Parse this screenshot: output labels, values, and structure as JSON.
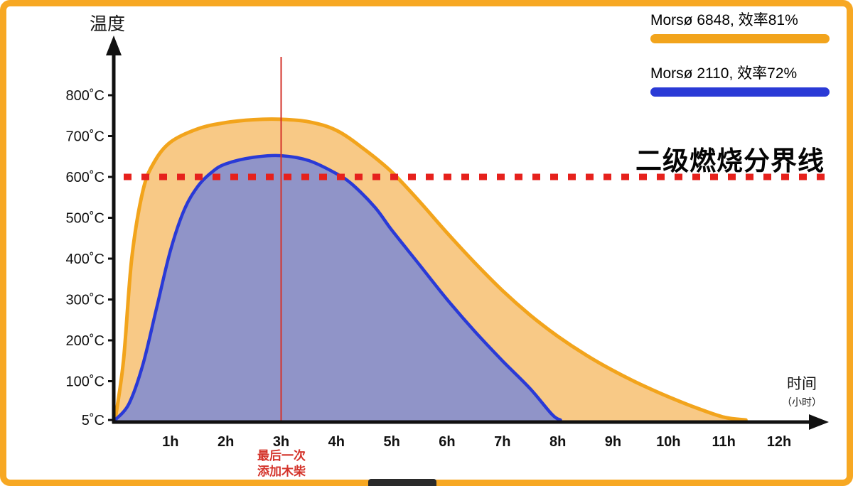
{
  "frame": {
    "border_color": "#F7A823",
    "background": "#FFFFFF"
  },
  "chart_data": {
    "type": "area",
    "title": "",
    "ylabel": "温度",
    "xlabel": "时间",
    "xlabel_sub": "（小时）",
    "xlim": [
      0,
      12.9
    ],
    "ylim": [
      0,
      870
    ],
    "grid": false,
    "legend_position": "top-right",
    "x_ticks": [
      {
        "t": 1,
        "label": "1h"
      },
      {
        "t": 2,
        "label": "2h"
      },
      {
        "t": 3,
        "label": "3h"
      },
      {
        "t": 4,
        "label": "4h"
      },
      {
        "t": 5,
        "label": "5h"
      },
      {
        "t": 6,
        "label": "6h"
      },
      {
        "t": 7,
        "label": "7h"
      },
      {
        "t": 8,
        "label": "8h"
      },
      {
        "t": 9,
        "label": "9h"
      },
      {
        "t": 10,
        "label": "10h"
      },
      {
        "t": 11,
        "label": "11h"
      },
      {
        "t": 12,
        "label": "12h"
      }
    ],
    "y_ticks": [
      {
        "v": 800,
        "label": "800˚C"
      },
      {
        "v": 700,
        "label": "700˚C"
      },
      {
        "v": 600,
        "label": "600˚C"
      },
      {
        "v": 500,
        "label": "500˚C"
      },
      {
        "v": 400,
        "label": "400˚C"
      },
      {
        "v": 300,
        "label": "300˚C"
      },
      {
        "v": 200,
        "label": "200˚C"
      },
      {
        "v": 100,
        "label": "100˚C"
      },
      {
        "v": 5,
        "label": "5˚C"
      }
    ],
    "series": [
      {
        "name": "Morsø 6848, 效率81%",
        "stove_model": "Morsø 6848",
        "efficiency_pct": 81,
        "stroke": "#F2A41C",
        "fill": "#F8C986",
        "points": [
          [
            0,
            5
          ],
          [
            0.15,
            150
          ],
          [
            0.3,
            400
          ],
          [
            0.5,
            565
          ],
          [
            0.7,
            635
          ],
          [
            1,
            685
          ],
          [
            1.5,
            718
          ],
          [
            2,
            733
          ],
          [
            2.5,
            740
          ],
          [
            3,
            741
          ],
          [
            3.5,
            735
          ],
          [
            4,
            714
          ],
          [
            4.5,
            668
          ],
          [
            5,
            612
          ],
          [
            5.5,
            540
          ],
          [
            6,
            463
          ],
          [
            6.5,
            390
          ],
          [
            7,
            322
          ],
          [
            7.5,
            262
          ],
          [
            8,
            210
          ],
          [
            8.5,
            165
          ],
          [
            9,
            126
          ],
          [
            9.5,
            92
          ],
          [
            10,
            62
          ],
          [
            10.5,
            35
          ],
          [
            11,
            12
          ],
          [
            11.4,
            5
          ]
        ]
      },
      {
        "name": "Morsø 2110, 效率72%",
        "stove_model": "Morsø 2110",
        "efficiency_pct": 72,
        "stroke": "#2A3AD6",
        "fill": "#9094C8",
        "points": [
          [
            0,
            5
          ],
          [
            0.25,
            45
          ],
          [
            0.5,
            140
          ],
          [
            0.75,
            280
          ],
          [
            1,
            420
          ],
          [
            1.25,
            520
          ],
          [
            1.5,
            578
          ],
          [
            1.75,
            612
          ],
          [
            2,
            632
          ],
          [
            2.5,
            648
          ],
          [
            3,
            652
          ],
          [
            3.5,
            640
          ],
          [
            4,
            608
          ],
          [
            4.3,
            580
          ],
          [
            4.7,
            525
          ],
          [
            5,
            470
          ],
          [
            5.5,
            385
          ],
          [
            6,
            300
          ],
          [
            6.5,
            222
          ],
          [
            7,
            150
          ],
          [
            7.5,
            82
          ],
          [
            7.9,
            18
          ],
          [
            8.05,
            5
          ]
        ]
      }
    ],
    "threshold_line": {
      "value": 600,
      "label": "二级燃烧分界线",
      "color": "#E6211C",
      "style": "dotted"
    },
    "event_marker": {
      "t": 3,
      "label": "最后一次添加木柴",
      "label_lines": [
        "最后一次",
        "添加木柴"
      ],
      "color": "#D4342B"
    }
  }
}
